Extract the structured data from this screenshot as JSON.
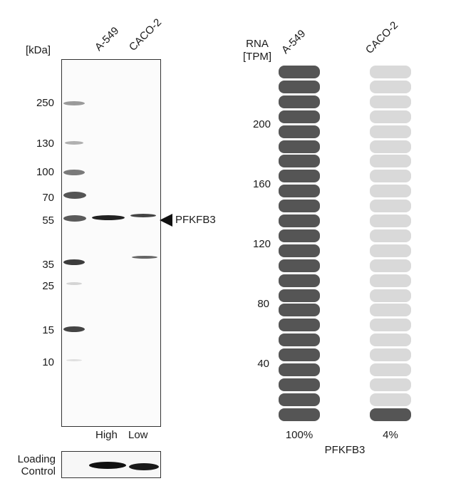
{
  "western_blot": {
    "unit_label": "[kDa]",
    "lanes": [
      "A-549",
      "CACO-2"
    ],
    "markers": [
      "250",
      "130",
      "100",
      "70",
      "55",
      "35",
      "25",
      "15",
      "10"
    ],
    "target_label": "PFKFB3",
    "expression_labels": [
      "High",
      "Low"
    ],
    "loading_control_label": [
      "Loading",
      "Control"
    ]
  },
  "rna": {
    "axis_title": [
      "RNA",
      "[TPM]"
    ],
    "axis_ticks": [
      "200",
      "160",
      "120",
      "80",
      "40"
    ],
    "columns": [
      {
        "name": "A-549",
        "percent": "100%",
        "filled_fraction": 1.0
      },
      {
        "name": "CACO-2",
        "percent": "4%",
        "filled_fraction": 0.04
      }
    ],
    "gene": "PFKFB3",
    "colors": {
      "filled": "#555555",
      "empty": "#d9d9d9"
    }
  }
}
